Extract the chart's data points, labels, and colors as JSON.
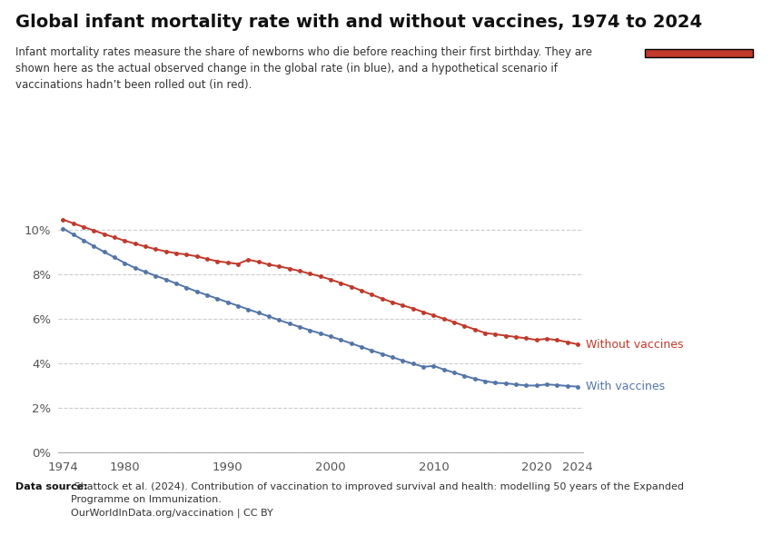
{
  "title": "Global infant mortality rate with and without vaccines, 1974 to 2024",
  "subtitle": "Infant mortality rates measure the share of newborns who die before reaching their first birthday. They are\nshown here as the actual observed change in the global rate (in blue), and a hypothetical scenario if\nvaccinations hadn’t been rolled out (in red).",
  "source_bold": "Data source:",
  "source_text": " Shattock et al. (2024). Contribution of vaccination to improved survival and health: modelling 50 years of the Expanded\nProgramme on Immunization.\nOurWorldInData.org/vaccination | CC BY",
  "with_vaccines_label": "With vaccines",
  "without_vaccines_label": "Without vaccines",
  "color_with": "#5375a8",
  "color_without": "#c0392b",
  "background_color": "#ffffff",
  "years": [
    1974,
    1975,
    1976,
    1977,
    1978,
    1979,
    1980,
    1981,
    1982,
    1983,
    1984,
    1985,
    1986,
    1987,
    1988,
    1989,
    1990,
    1991,
    1992,
    1993,
    1994,
    1995,
    1996,
    1997,
    1998,
    1999,
    2000,
    2001,
    2002,
    2003,
    2004,
    2005,
    2006,
    2007,
    2008,
    2009,
    2010,
    2011,
    2012,
    2013,
    2014,
    2015,
    2016,
    2017,
    2018,
    2019,
    2020,
    2021,
    2022,
    2023,
    2024
  ],
  "with_vaccines": [
    10.05,
    9.78,
    9.52,
    9.25,
    9.0,
    8.75,
    8.5,
    8.28,
    8.1,
    7.93,
    7.76,
    7.58,
    7.4,
    7.22,
    7.06,
    6.9,
    6.74,
    6.58,
    6.42,
    6.26,
    6.1,
    5.94,
    5.78,
    5.63,
    5.48,
    5.34,
    5.2,
    5.05,
    4.89,
    4.73,
    4.57,
    4.42,
    4.27,
    4.12,
    3.98,
    3.84,
    3.88,
    3.72,
    3.58,
    3.44,
    3.3,
    3.2,
    3.12,
    3.1,
    3.05,
    3.0,
    3.0,
    3.05,
    3.02,
    2.98,
    2.95
  ],
  "without_vaccines": [
    10.45,
    10.28,
    10.12,
    9.96,
    9.8,
    9.65,
    9.5,
    9.37,
    9.24,
    9.12,
    9.02,
    8.94,
    8.88,
    8.8,
    8.68,
    8.58,
    8.52,
    8.46,
    8.65,
    8.55,
    8.43,
    8.35,
    8.25,
    8.14,
    8.02,
    7.9,
    7.76,
    7.6,
    7.44,
    7.26,
    7.08,
    6.9,
    6.74,
    6.6,
    6.46,
    6.3,
    6.15,
    6.0,
    5.84,
    5.68,
    5.52,
    5.36,
    5.3,
    5.24,
    5.18,
    5.12,
    5.05,
    5.1,
    5.04,
    4.95,
    4.85
  ],
  "ylim": [
    0,
    11.5
  ],
  "yticks": [
    0,
    2,
    4,
    6,
    8,
    10
  ],
  "xlim": [
    1973.5,
    2024.5
  ],
  "xticks": [
    1974,
    1980,
    1990,
    2000,
    2010,
    2020,
    2024
  ],
  "owid_box_color": "#1a3560",
  "owid_bar_color": "#c0392b",
  "owid_text_color": "#ffffff",
  "grid_color": "#cccccc",
  "spine_color": "#aaaaaa"
}
